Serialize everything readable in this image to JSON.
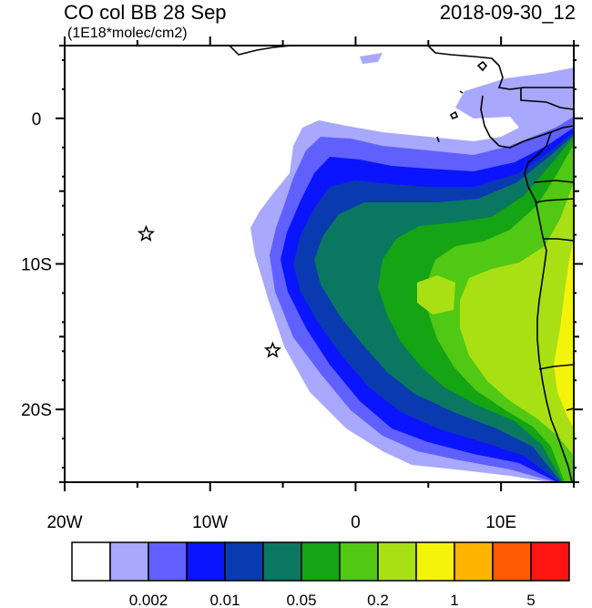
{
  "header": {
    "title": "CO col BB 28 Sep",
    "valid_time": "2018-09-30_12",
    "units": "(1E18*molec/cm2)"
  },
  "map": {
    "projection": "cylindrical equidistant",
    "lon_range": [
      -20,
      15
    ],
    "lat_range": [
      -25,
      5
    ],
    "x_ticks": [
      {
        "value": -20,
        "label": "20W"
      },
      {
        "value": -10,
        "label": "10W"
      },
      {
        "value": 0,
        "label": "0"
      },
      {
        "value": 10,
        "label": "10E"
      }
    ],
    "y_ticks": [
      {
        "value": 0,
        "label": "0"
      },
      {
        "value": -10,
        "label": "10S"
      },
      {
        "value": -20,
        "label": "20S"
      }
    ],
    "markers": [
      {
        "name": "Ascension Island",
        "lon": -14.4,
        "lat": -7.95,
        "symbol": "star"
      },
      {
        "name": "St Helena",
        "lon": -5.7,
        "lat": -15.95,
        "symbol": "star"
      }
    ]
  },
  "colorbar": {
    "colors": [
      "#ffffff",
      "#a8a8ff",
      "#6060ff",
      "#0a14ff",
      "#0a3ab0",
      "#0a7860",
      "#14a414",
      "#50c814",
      "#a8e014",
      "#f4f40a",
      "#ffb400",
      "#ff5a00",
      "#ff1414"
    ],
    "labels": [
      {
        "index": 2,
        "text": "0.002"
      },
      {
        "index": 4,
        "text": "0.01"
      },
      {
        "index": 6,
        "text": "0.05"
      },
      {
        "index": 8,
        "text": "0.2"
      },
      {
        "index": 10,
        "text": "1"
      },
      {
        "index": 12,
        "text": "5"
      }
    ]
  },
  "colors": {
    "land_boundary": "#000000",
    "frame": "#000000"
  }
}
